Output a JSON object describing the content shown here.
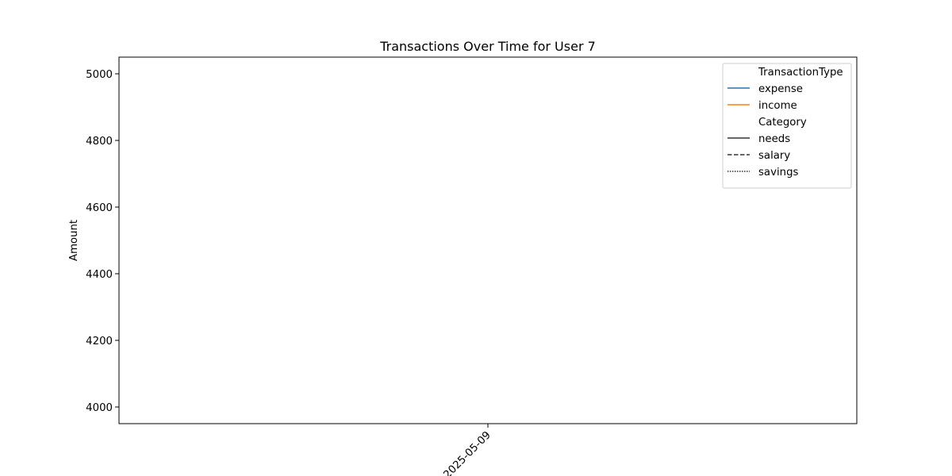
{
  "chart_data": {
    "type": "line",
    "title": "Transactions Over Time for User 7",
    "xlabel": "",
    "ylabel": "Amount",
    "x_type": "date",
    "x_ticks": [
      "2025-05-09"
    ],
    "y_ticks": [
      4000,
      4200,
      4400,
      4600,
      4800,
      5000
    ],
    "ylim": [
      3950,
      5050
    ],
    "grid": false,
    "legend_placement": "upper right",
    "hue_title": "TransactionType",
    "style_title": "Category",
    "series": [],
    "legend": {
      "hue": [
        {
          "label": "expense",
          "color": "#1f77b4"
        },
        {
          "label": "income",
          "color": "#ff7f0e"
        }
      ],
      "style": [
        {
          "label": "needs",
          "dash": "solid"
        },
        {
          "label": "salary",
          "dash": "dashed"
        },
        {
          "label": "savings",
          "dash": "dotted"
        }
      ]
    }
  }
}
